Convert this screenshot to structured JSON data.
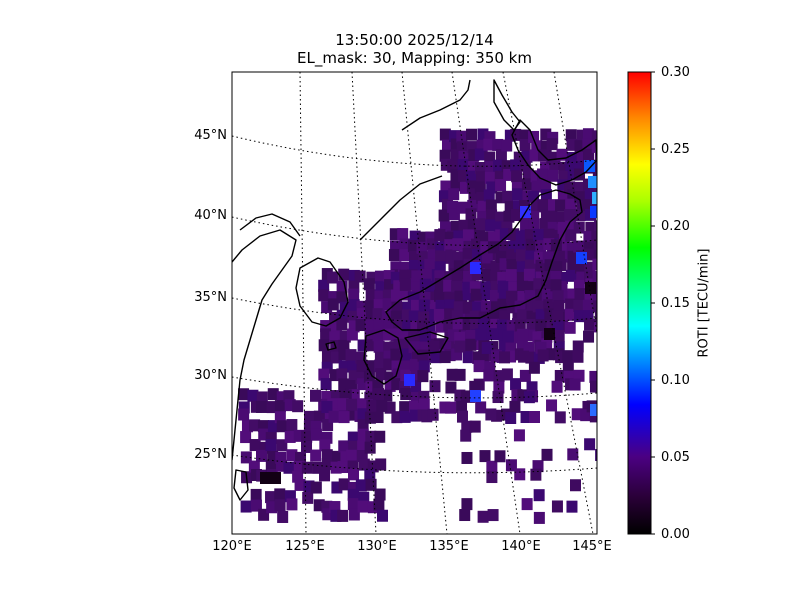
{
  "title": {
    "line1": "13:50:00 2025/12/14",
    "line2": "EL_mask: 30, Mapping: 350 km"
  },
  "map": {
    "projection": "lambert-conformal",
    "lon_range": [
      120,
      145
    ],
    "lat_range": [
      20,
      48
    ],
    "lat_ticks": [
      "45°N",
      "40°N",
      "35°N",
      "30°N",
      "25°N"
    ],
    "lon_ticks": [
      "120°E",
      "125°E",
      "130°E",
      "135°E",
      "140°E",
      "145°E"
    ],
    "gridlines": "dotted",
    "coastline_color": "#000000",
    "dominant_value": "≈0.03–0.05 TECU/min over Japan and adjacent seas",
    "highlight_regions": [
      {
        "region": "Hokkaido east coast",
        "roti": 0.09
      },
      {
        "region": "off Kyushu south / Okinawa",
        "roti": 0.06
      }
    ]
  },
  "colorbar": {
    "label": "ROTI [TECU/min]",
    "min": 0.0,
    "max": 0.3,
    "ticks": [
      "0.00",
      "0.05",
      "0.10",
      "0.15",
      "0.20",
      "0.25",
      "0.30"
    ],
    "colormap": "nipy_spectral-like",
    "stops": [
      "#000000",
      "#4b0082",
      "#0000ff",
      "#00ffff",
      "#00ff00",
      "#ffff00",
      "#ff0000"
    ]
  }
}
